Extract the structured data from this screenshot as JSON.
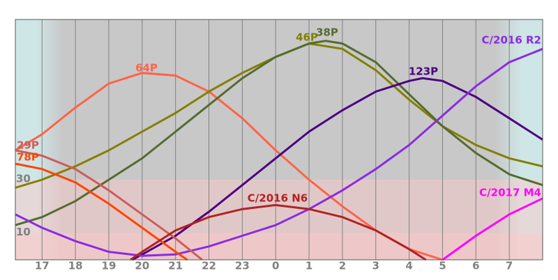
{
  "chart_data": {
    "type": "line",
    "xlim": [
      16.2,
      32.0
    ],
    "xticks": [
      17,
      18,
      19,
      20,
      21,
      22,
      23,
      {
        "value": 24,
        "label": "0"
      },
      {
        "value": 25,
        "label": "1"
      },
      {
        "value": 26,
        "label": "2"
      },
      {
        "value": 27,
        "label": "3"
      },
      {
        "value": 28,
        "label": "4"
      },
      {
        "value": 29,
        "label": "5"
      },
      {
        "value": 30,
        "label": "6"
      },
      {
        "value": 31,
        "label": "7"
      }
    ],
    "ylim": [
      0,
      90
    ],
    "yticks": [
      30,
      10
    ],
    "series": [
      {
        "name": "64P",
        "color": "#ff6347",
        "x": [
          16.2,
          17,
          18,
          19,
          20,
          21,
          22,
          23,
          24,
          25,
          26,
          27,
          28,
          29
        ],
        "values": [
          41,
          47,
          57,
          66,
          70,
          69,
          63,
          53,
          41,
          30,
          20,
          11,
          4,
          0
        ]
      },
      {
        "name": "46P",
        "color": "#808000",
        "x": [
          16.2,
          17,
          18,
          19,
          20,
          21,
          22,
          23,
          24,
          25,
          26,
          27,
          28,
          29,
          30,
          31,
          32
        ],
        "values": [
          27,
          30,
          35,
          41,
          48,
          55,
          63,
          70,
          76,
          81,
          79,
          71,
          60,
          50,
          43,
          38,
          35
        ]
      },
      {
        "name": "38P",
        "color": "#556b2f",
        "x": [
          16.2,
          17,
          18,
          19,
          20,
          21,
          22,
          23,
          24,
          25,
          25.5,
          26,
          27,
          28,
          29,
          30,
          31,
          32
        ],
        "values": [
          13,
          16,
          22,
          30,
          38,
          48,
          58,
          68,
          76,
          81,
          82,
          81,
          74,
          62,
          50,
          40,
          32,
          28
        ]
      },
      {
        "name": "123P",
        "color": "#4b0082",
        "x": [
          19.7,
          20,
          21,
          22,
          23,
          24,
          25,
          26,
          27,
          28,
          28.4,
          29,
          30,
          31,
          32
        ],
        "values": [
          0,
          2,
          9,
          18,
          28,
          38,
          48,
          56,
          63,
          67,
          68,
          67,
          61,
          53,
          45
        ]
      },
      {
        "name": "C/2016 R2",
        "color": "#8a2be2",
        "x": [
          16.2,
          17,
          18,
          19,
          20,
          21,
          22,
          23,
          24,
          25,
          26,
          27,
          28,
          29,
          30,
          31,
          32
        ],
        "values": [
          17,
          12,
          7,
          3,
          1.5,
          2,
          5,
          9,
          13,
          19,
          26,
          34,
          43,
          54,
          65,
          74,
          79
        ]
      },
      {
        "name": "29P",
        "color": "#cd5c5c",
        "x": [
          16.2,
          17,
          18,
          19,
          20,
          21,
          21.8
        ],
        "values": [
          41,
          39,
          34,
          26,
          17,
          8,
          0
        ]
      },
      {
        "name": "78P",
        "color": "#ff4500",
        "x": [
          16.2,
          17,
          18,
          19,
          20,
          21,
          21.35
        ],
        "values": [
          36,
          34,
          29,
          21,
          12,
          3,
          0
        ]
      },
      {
        "name": "C/2016 N6",
        "color": "#b22222",
        "x": [
          19.65,
          20,
          21,
          22,
          23,
          24,
          25,
          26,
          27,
          28,
          28.5
        ],
        "values": [
          0,
          3,
          11,
          16,
          19,
          20.5,
          19,
          16,
          11,
          4,
          0
        ]
      },
      {
        "name": "C/2017 M4",
        "color": "#ff00ff",
        "x": [
          29,
          30,
          31,
          32
        ],
        "values": [
          0,
          9,
          17,
          23
        ]
      }
    ]
  }
}
